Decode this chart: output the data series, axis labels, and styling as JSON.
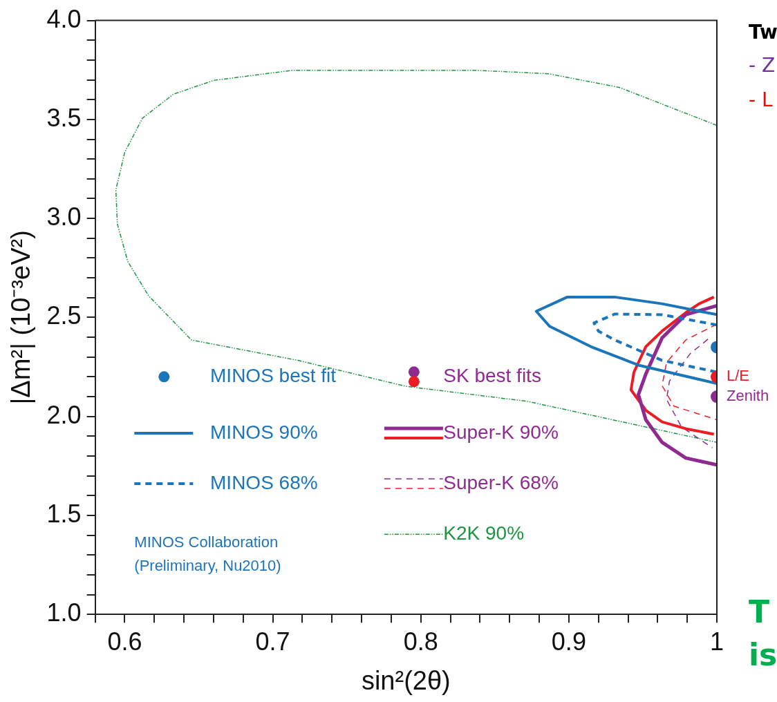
{
  "chart_data": {
    "type": "scatter",
    "xlabel": "sin²(2θ)",
    "ylabel": "|Δm²| (10⁻³eV²)",
    "xlim": [
      0.58,
      1.0
    ],
    "ylim": [
      1.0,
      4.0
    ],
    "xticks": [
      {
        "value": 0.58,
        "label": null
      },
      0.6,
      {
        "value": 0.62,
        "label": null
      },
      {
        "value": 0.64,
        "label": null
      },
      {
        "value": 0.66,
        "label": null
      },
      {
        "value": 0.68,
        "label": null
      },
      0.7,
      {
        "value": 0.72,
        "label": null
      },
      {
        "value": 0.74,
        "label": null
      },
      {
        "value": 0.76,
        "label": null
      },
      {
        "value": 0.78,
        "label": null
      },
      0.8,
      {
        "value": 0.82,
        "label": null
      },
      {
        "value": 0.84,
        "label": null
      },
      {
        "value": 0.86,
        "label": null
      },
      {
        "value": 0.88,
        "label": null
      },
      0.9,
      {
        "value": 0.92,
        "label": null
      },
      {
        "value": 0.94,
        "label": null
      },
      {
        "value": 0.96,
        "label": null
      },
      {
        "value": 0.98,
        "label": null
      },
      1
    ],
    "yticks": [
      {
        "value": 1,
        "label": "1.0"
      },
      {
        "value": 1.1,
        "label": null
      },
      {
        "value": 1.2,
        "label": null
      },
      {
        "value": 1.3,
        "label": null
      },
      {
        "value": 1.4,
        "label": null
      },
      1.5,
      {
        "value": 1.6,
        "label": null
      },
      {
        "value": 1.7,
        "label": null
      },
      {
        "value": 1.8,
        "label": null
      },
      {
        "value": 1.9,
        "label": null
      },
      {
        "value": 2,
        "label": "2.0"
      },
      {
        "value": 2.1,
        "label": null
      },
      {
        "value": 2.2,
        "label": null
      },
      {
        "value": 2.3,
        "label": null
      },
      {
        "value": 2.4,
        "label": null
      },
      2.5,
      {
        "value": 2.6,
        "label": null
      },
      {
        "value": 2.7,
        "label": null
      },
      {
        "value": 2.8,
        "label": null
      },
      {
        "value": 2.9,
        "label": null
      },
      {
        "value": 3,
        "label": "3.0"
      },
      {
        "value": 3.1,
        "label": null
      },
      {
        "value": 3.2,
        "label": null
      },
      {
        "value": 3.3,
        "label": null
      },
      {
        "value": 3.4,
        "label": null
      },
      3.5,
      {
        "value": 3.6,
        "label": null
      },
      {
        "value": 3.7,
        "label": null
      },
      {
        "value": 3.8,
        "label": null
      },
      {
        "value": 3.9,
        "label": null
      },
      {
        "value": 4,
        "label": "4.0"
      }
    ],
    "grid": false,
    "legend": "bottom left",
    "series": [
      {
        "name": "MINOS best fit",
        "type": "scatter",
        "marker": "circle",
        "color": "#1b75bb",
        "x": [
          1.0
        ],
        "values": [
          2.35
        ]
      },
      {
        "name": "MINOS 90%",
        "type": "line",
        "marker": "none",
        "line_style": "solid",
        "color": "#1b75bb",
        "x": [
          1.0,
          0.963,
          0.931,
          0.899,
          0.878,
          0.887,
          0.915,
          0.947,
          1.0
        ],
        "values": [
          2.514,
          2.569,
          2.603,
          2.603,
          2.531,
          2.455,
          2.352,
          2.259,
          2.166
        ]
      },
      {
        "name": "MINOS 68%",
        "type": "line",
        "marker": "none",
        "line_style": "dashed",
        "color": "#1b75bb",
        "x": [
          1.0,
          0.963,
          0.931,
          0.917,
          0.92,
          0.931,
          0.963,
          1.0
        ],
        "values": [
          2.462,
          2.514,
          2.517,
          2.472,
          2.431,
          2.386,
          2.283,
          2.224
        ]
      },
      {
        "name": "SK best fits",
        "type": "scatter",
        "marker": "circle",
        "color": "#8e2a90",
        "x": [
          1.0
        ],
        "values": [
          2.1
        ]
      },
      {
        "type": "scatter",
        "marker": "circle",
        "color": "#ed1c24",
        "x": [
          1.0
        ],
        "values": [
          2.2
        ]
      },
      {
        "name": "Super-K 90%",
        "type": "line",
        "marker": "none",
        "line_style": "solid",
        "color": "#8e2a90",
        "x": [
          1.0,
          0.979,
          0.963,
          0.952,
          0.947,
          0.952,
          0.963,
          0.979,
          1.0
        ],
        "values": [
          2.559,
          2.514,
          2.397,
          2.214,
          2.11,
          1.983,
          1.869,
          1.79,
          1.755
        ]
      },
      {
        "type": "line",
        "marker": "none",
        "line_style": "solid",
        "color": "#ed1c24",
        "x": [
          0.998,
          0.988,
          0.979,
          0.963,
          0.952,
          0.944,
          0.942,
          0.952,
          0.963,
          0.979,
          0.998
        ],
        "values": [
          2.603,
          2.569,
          2.524,
          2.431,
          2.352,
          2.224,
          2.134,
          2.031,
          1.972,
          1.938,
          1.91
        ]
      },
      {
        "name": "Super-K 68%",
        "type": "line",
        "marker": "none",
        "line_style": "dashed",
        "color": "#8e2a90",
        "x": [
          0.994,
          0.982,
          0.968,
          0.966,
          0.976,
          0.997
        ],
        "values": [
          2.39,
          2.317,
          2.179,
          2.086,
          1.948,
          1.841
        ]
      },
      {
        "type": "line",
        "marker": "none",
        "line_style": "dashed",
        "color": "#ed1c24",
        "x": [
          1.0,
          0.979,
          0.966,
          0.963,
          0.971,
          1.0
        ],
        "values": [
          2.466,
          2.386,
          2.272,
          2.155,
          2.052,
          1.983
        ]
      },
      {
        "name": "K2K 90%",
        "type": "line",
        "marker": "none",
        "line_style": "dotted",
        "color": "#1a9641",
        "x": [
          1.0,
          0.934,
          0.886,
          0.838,
          0.737,
          0.713,
          0.66,
          0.633,
          0.612,
          0.6,
          0.594,
          0.595,
          0.602,
          0.616,
          0.645,
          0.717,
          0.79,
          0.872,
          1.0
        ],
        "values": [
          3.47,
          3.662,
          3.731,
          3.748,
          3.748,
          3.748,
          3.697,
          3.628,
          3.507,
          3.334,
          3.145,
          2.972,
          2.783,
          2.61,
          2.386,
          2.283,
          2.152,
          2.076,
          1.869
        ]
      }
    ],
    "annotations": [
      {
        "text": "L/E",
        "x": 1.0,
        "y": 2.2
      },
      {
        "text": "Zenith",
        "x": 1.0,
        "y": 2.1
      },
      "MINOS Collaboration",
      "(Preliminary, Nu2010)",
      "Tw",
      "- Z",
      "- L",
      "T",
      "is"
    ]
  }
}
